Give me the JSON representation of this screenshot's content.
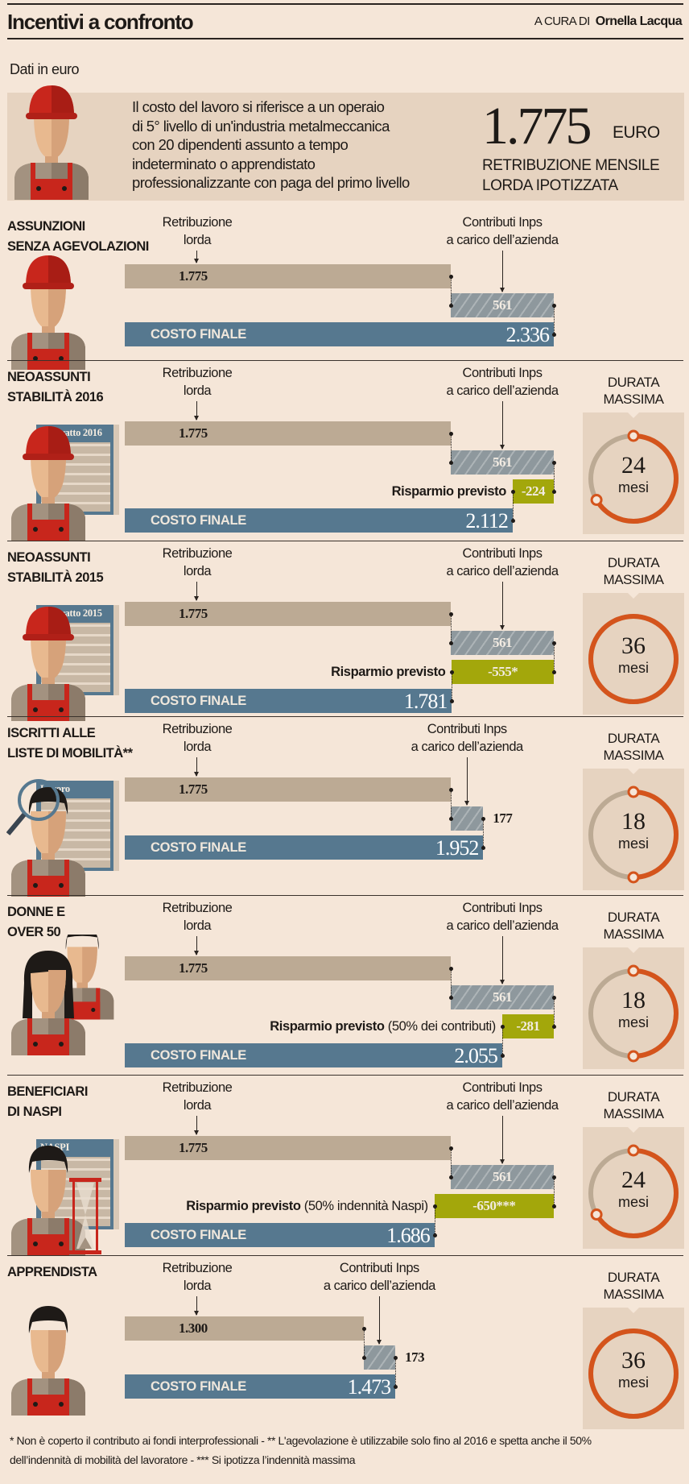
{
  "header": {
    "title": "Incentivi a confronto",
    "byline_prefix": "A CURA DI",
    "byline_name": "Ornella Lacqua"
  },
  "unit_note": "Dati in euro",
  "intro": {
    "lines": [
      "Il costo del lavoro si riferisce a un operaio",
      "di 5° livello di un'industria metalmeccanica",
      "con 20 dipendenti assunto a tempo",
      "indeterminato o apprendistato",
      "professionalizzante con paga del primo livello"
    ],
    "amount": "1.775",
    "currency": "EURO",
    "amount_label": [
      "RETRIBUZIONE MENSILE",
      "LORDA IPOTIZZATA"
    ]
  },
  "labels": {
    "lorda": [
      "Retribuzione",
      "lorda"
    ],
    "contrib": [
      "Contributi Inps",
      "a carico dell’azienda"
    ],
    "costo": "COSTO FINALE",
    "risparmio": "Risparmio previsto",
    "durata": [
      "DURATA",
      "MASSIMA"
    ],
    "mesi": "mesi"
  },
  "colors": {
    "lorda": "#bcaa94",
    "contributi": "#8e989d",
    "risparmio": "#a3a70b",
    "costo_finale": "#56788f",
    "durata": "#d4541c",
    "durata_track": "#bcaa94"
  },
  "chart_data": {
    "type": "bar",
    "title": "Incentivi a confronto",
    "unit": "euro",
    "max_durata_mesi": 36,
    "sections": [
      {
        "title": [
          "ASSUNZIONI",
          "SENZA AGEVOLAZIONI"
        ],
        "icon": "worker-hat",
        "doc": null,
        "lorda": 1775,
        "lorda_label": "1.775",
        "contributi": 561,
        "contributi_label": "561",
        "risparmio": null,
        "risparmio_label": null,
        "risparmio_note": null,
        "costo_finale": 2336,
        "costo_label": "2.336",
        "durata_mesi": null
      },
      {
        "title": [
          "NEOASSUNTI",
          "STABILITÀ 2016"
        ],
        "icon": "worker-hat",
        "doc": "Contratto 2016",
        "lorda": 1775,
        "lorda_label": "1.775",
        "contributi": 561,
        "contributi_label": "561",
        "risparmio": -224,
        "risparmio_label": "-224",
        "risparmio_note": null,
        "costo_finale": 2112,
        "costo_label": "2.112",
        "durata_mesi": 24
      },
      {
        "title": [
          "NEOASSUNTI",
          "STABILITÀ 2015"
        ],
        "icon": "worker-hat",
        "doc": "Contratto 2015",
        "lorda": 1775,
        "lorda_label": "1.775",
        "contributi": 561,
        "contributi_label": "561",
        "risparmio": -555,
        "risparmio_label": "-555*",
        "risparmio_note": null,
        "costo_finale": 1781,
        "costo_label": "1.781",
        "durata_mesi": 36
      },
      {
        "title": [
          "ISCRITTI ALLE",
          "LISTE DI MOBILITÀ**"
        ],
        "icon": "worker-magnifier",
        "doc": "Lavoro",
        "lorda": 1775,
        "lorda_label": "1.775",
        "contributi": 177,
        "contributi_label": "177",
        "risparmio": null,
        "risparmio_label": null,
        "risparmio_note": null,
        "costo_finale": 1952,
        "costo_label": "1.952",
        "durata_mesi": 18
      },
      {
        "title": [
          "DONNE E",
          "OVER 50"
        ],
        "icon": "women",
        "doc": null,
        "lorda": 1775,
        "lorda_label": "1.775",
        "contributi": 561,
        "contributi_label": "561",
        "risparmio": -281,
        "risparmio_label": "-281",
        "risparmio_note": "(50% dei contributi)",
        "costo_finale": 2055,
        "costo_label": "2.055",
        "durata_mesi": 18
      },
      {
        "title": [
          "BENEFICIARI",
          "DI NASPI"
        ],
        "icon": "worker-hourglass",
        "doc": "NASPI",
        "lorda": 1775,
        "lorda_label": "1.775",
        "contributi": 561,
        "contributi_label": "561",
        "risparmio": -650,
        "risparmio_label": "-650***",
        "risparmio_note": "(50% indennità Naspi)",
        "costo_finale": 1686,
        "costo_label": "1.686",
        "durata_mesi": 24
      },
      {
        "title": [
          "APPRENDISTA"
        ],
        "icon": "young-worker",
        "doc": null,
        "lorda": 1300,
        "lorda_label": "1.300",
        "contributi": 173,
        "contributi_label": "173",
        "risparmio": null,
        "risparmio_label": null,
        "risparmio_note": null,
        "costo_finale": 1473,
        "costo_label": "1.473",
        "durata_mesi": 36
      }
    ]
  },
  "footer": [
    "* Non è coperto il contributo ai fondi interprofessionali - ** L'agevolazione è utilizzabile solo fino al 2016 e spetta anche il 50%",
    "dell’indennità di mobilità del lavoratore - *** Si ipotizza l’indennità massima"
  ]
}
